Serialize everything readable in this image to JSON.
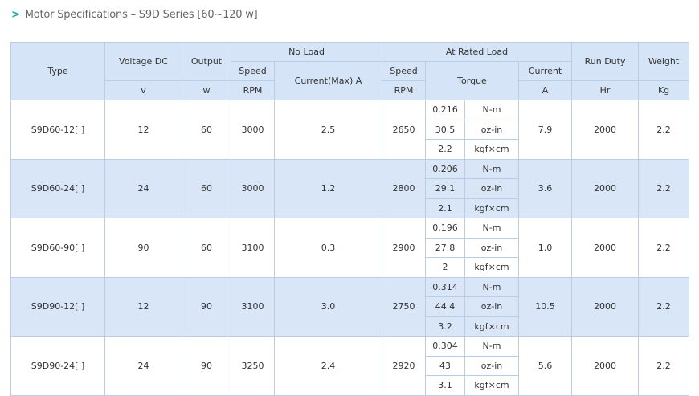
{
  "header": {
    "title": "Motor Specifications – S9D Series [60~120 w]"
  },
  "table": {
    "headers": {
      "type": "Type",
      "voltage": "Voltage DC",
      "output": "Output",
      "no_load": "No Load",
      "rated_load": "At Rated Load",
      "run_duty": "Run Duty",
      "weight": "Weight",
      "speed": "Speed",
      "current_max": "Current(Max) A",
      "rated_speed": "Speed",
      "torque": "Torque",
      "rated_current": "Current",
      "voltage_unit": "v",
      "output_unit": "w",
      "speed_unit": "RPM",
      "rated_speed_unit": "RPM",
      "current_unit": "A",
      "run_duty_unit": "Hr",
      "weight_unit": "Kg"
    },
    "rows": [
      {
        "type": "S9D60-12[ ]",
        "voltage": "12",
        "output": "60",
        "speed": "3000",
        "current_max": "2.5",
        "rated_speed": "2650",
        "torque": [
          [
            "0.216",
            "N-m"
          ],
          [
            "30.5",
            "oz-in"
          ],
          [
            "2.2",
            "kgf×cm"
          ]
        ],
        "current": "7.9",
        "run_duty": "2000",
        "weight": "2.2"
      },
      {
        "type": "S9D60-24[ ]",
        "voltage": "24",
        "output": "60",
        "speed": "3000",
        "current_max": "1.2",
        "rated_speed": "2800",
        "torque": [
          [
            "0.206",
            "N-m"
          ],
          [
            "29.1",
            "oz-in"
          ],
          [
            "2.1",
            "kgf×cm"
          ]
        ],
        "current": "3.6",
        "run_duty": "2000",
        "weight": "2.2"
      },
      {
        "type": "S9D60-90[ ]",
        "voltage": "90",
        "output": "60",
        "speed": "3100",
        "current_max": "0.3",
        "rated_speed": "2900",
        "torque": [
          [
            "0.196",
            "N-m"
          ],
          [
            "27.8",
            "oz-in"
          ],
          [
            "2",
            "kgf×cm"
          ]
        ],
        "current": "1.0",
        "run_duty": "2000",
        "weight": "2.2"
      },
      {
        "type": "S9D90-12[ ]",
        "voltage": "12",
        "output": "90",
        "speed": "3100",
        "current_max": "3.0",
        "rated_speed": "2750",
        "torque": [
          [
            "0.314",
            "N-m"
          ],
          [
            "44.4",
            "oz-in"
          ],
          [
            "3.2",
            "kgf×cm"
          ]
        ],
        "current": "10.5",
        "run_duty": "2000",
        "weight": "2.2"
      },
      {
        "type": "S9D90-24[ ]",
        "voltage": "24",
        "output": "90",
        "speed": "3250",
        "current_max": "2.4",
        "rated_speed": "2920",
        "torque": [
          [
            "0.304",
            "N-m"
          ],
          [
            "43",
            "oz-in"
          ],
          [
            "3.1",
            "kgf×cm"
          ]
        ],
        "current": "5.6",
        "run_duty": "2000",
        "weight": "2.2"
      }
    ]
  }
}
